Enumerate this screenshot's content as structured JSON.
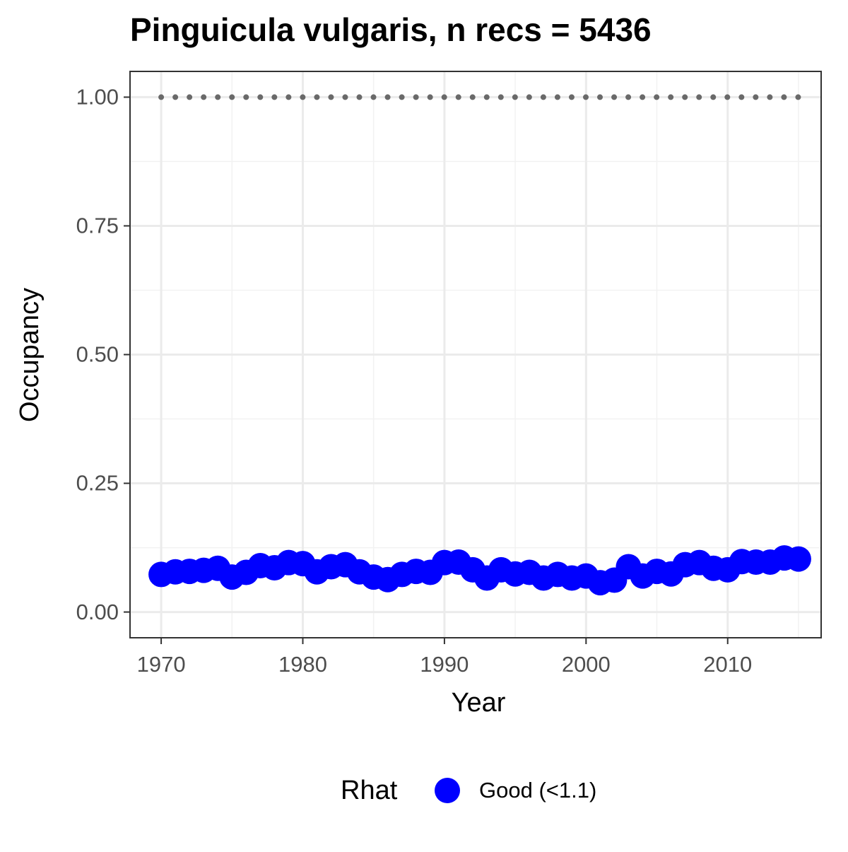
{
  "chart_data": {
    "type": "scatter",
    "title": "Pinguicula vulgaris, n recs = 5436",
    "x_label": "Year",
    "y_label": "Occupancy",
    "x": [
      1970,
      1971,
      1972,
      1973,
      1974,
      1975,
      1976,
      1977,
      1978,
      1979,
      1980,
      1981,
      1982,
      1983,
      1984,
      1985,
      1986,
      1987,
      1988,
      1989,
      1990,
      1991,
      1992,
      1993,
      1994,
      1995,
      1996,
      1997,
      1998,
      1999,
      2000,
      2001,
      2002,
      2003,
      2004,
      2005,
      2006,
      2007,
      2008,
      2009,
      2010,
      2011,
      2012,
      2013,
      2014,
      2015
    ],
    "series": [
      {
        "name": "Good (<1.1)",
        "color": "#0000ff",
        "values": [
          0.073,
          0.078,
          0.079,
          0.081,
          0.085,
          0.068,
          0.077,
          0.09,
          0.086,
          0.096,
          0.094,
          0.078,
          0.088,
          0.092,
          0.078,
          0.068,
          0.063,
          0.073,
          0.079,
          0.077,
          0.096,
          0.097,
          0.082,
          0.066,
          0.082,
          0.074,
          0.077,
          0.066,
          0.073,
          0.066,
          0.07,
          0.057,
          0.062,
          0.088,
          0.07,
          0.079,
          0.074,
          0.092,
          0.096,
          0.085,
          0.082,
          0.098,
          0.097,
          0.097,
          0.105,
          0.103
        ]
      }
    ],
    "reference_line": {
      "y": 1,
      "color": "#696969"
    },
    "legend_title": "Rhat",
    "legend_position": "bottom",
    "xlim": [
      1967.8,
      2016.6
    ],
    "ylim": [
      -0.05,
      1.05
    ],
    "xticks": [
      1970,
      1980,
      1990,
      2000,
      2010
    ],
    "yticks": [
      {
        "value": 0,
        "label": "0.00"
      },
      {
        "value": 0.25,
        "label": "0.25"
      },
      {
        "value": 0.5,
        "label": "0.50"
      },
      {
        "value": 0.75,
        "label": "0.75"
      },
      {
        "value": 1,
        "label": "1.00"
      }
    ],
    "x_minor_ticks": [
      1975,
      1985,
      1995,
      2005,
      2015
    ],
    "y_minor_ticks": [
      0.125,
      0.375,
      0.625,
      0.875
    ],
    "grid": true
  }
}
